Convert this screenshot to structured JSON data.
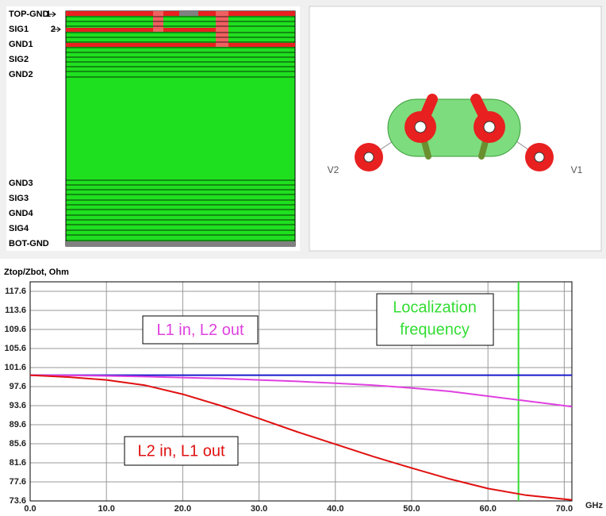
{
  "stackup": {
    "layers": [
      "TOP-GND",
      "SIG1",
      "GND1",
      "SIG2",
      "GND2",
      "GND3",
      "SIG3",
      "GND4",
      "SIG4",
      "BOT-GND"
    ],
    "markers": [
      "1",
      "2"
    ]
  },
  "via": {
    "labels": [
      "V2",
      "V1"
    ]
  },
  "chart_data": {
    "type": "line",
    "y_label": "Ztop/Zbot, Ohm",
    "x_label": "GHz",
    "x": [
      0,
      5,
      10,
      15,
      20,
      25,
      30,
      35,
      40,
      45,
      50,
      55,
      60,
      65,
      71
    ],
    "series": [
      {
        "color": "#1a1acc",
        "values": [
          100,
          100,
          100,
          100,
          100,
          100,
          100,
          100,
          100,
          100,
          100,
          100,
          100,
          100,
          100
        ]
      },
      {
        "name": "L1 in, L2 out",
        "color": "#e040e0",
        "values": [
          100,
          99.95,
          99.85,
          99.7,
          99.5,
          99.3,
          99.0,
          98.7,
          98.3,
          97.9,
          97.3,
          96.6,
          95.6,
          94.6,
          93.4
        ]
      },
      {
        "name": "L2 in, L1 out",
        "color": "#e01010",
        "values": [
          100,
          99.6,
          99.0,
          97.9,
          96.0,
          93.6,
          90.9,
          88.1,
          85.5,
          82.9,
          80.5,
          78.2,
          76.2,
          74.8,
          73.8
        ]
      }
    ],
    "annotations": [
      {
        "text": [
          "Localization",
          "frequency"
        ],
        "x": 64,
        "color": "#33dd33"
      }
    ],
    "xlim": [
      0,
      71
    ],
    "xticks": [
      {
        "value": 0,
        "label": "0.0"
      },
      {
        "value": 10,
        "label": "10.0"
      },
      {
        "value": 20,
        "label": "20.0"
      },
      {
        "value": 30,
        "label": "30.0"
      },
      {
        "value": 40,
        "label": "40.0"
      },
      {
        "value": 50,
        "label": "50.0"
      },
      {
        "value": 60,
        "label": "60.0"
      },
      {
        "value": 70,
        "label": "70.0"
      }
    ],
    "ylim": [
      73.6,
      119.6
    ],
    "yticks": [
      73.6,
      77.6,
      81.6,
      85.6,
      89.6,
      93.6,
      97.6,
      101.6,
      105.6,
      109.6,
      113.6,
      117.6
    ],
    "grid": true
  }
}
